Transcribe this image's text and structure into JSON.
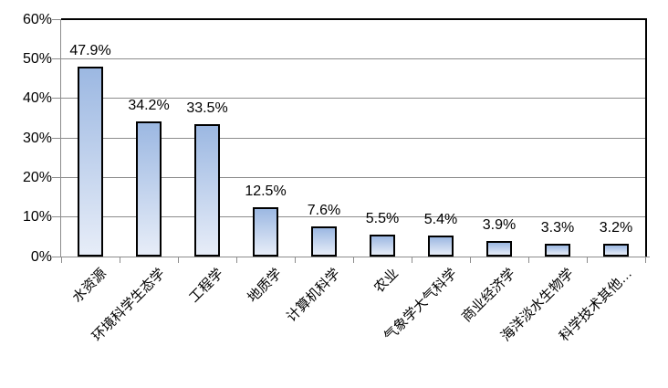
{
  "chart_data": {
    "type": "bar",
    "title": "",
    "xlabel": "",
    "ylabel": "",
    "categories": [
      "水资源",
      "环境科学生态学",
      "工程学",
      "地质学",
      "计算机科学",
      "农业",
      "气象学大气科学",
      "商业经济学",
      "海洋淡水生物学",
      "科学技术其他…"
    ],
    "values": [
      47.9,
      34.2,
      33.5,
      12.5,
      7.6,
      5.5,
      5.4,
      3.9,
      3.3,
      3.2
    ],
    "value_labels": [
      "47.9%",
      "34.2%",
      "33.5%",
      "12.5%",
      "7.6%",
      "5.5%",
      "5.4%",
      "3.9%",
      "3.3%",
      "3.2%"
    ],
    "y_axis_ticks": [
      {
        "label": "60%",
        "value": 60
      },
      {
        "label": "50%",
        "value": 50
      },
      {
        "label": "40%",
        "value": 40
      },
      {
        "label": "30%",
        "value": 30
      },
      {
        "label": "20%",
        "value": 20
      },
      {
        "label": "10%",
        "value": 10
      },
      {
        "label": "0%",
        "value": 0
      }
    ],
    "ylim": [
      0,
      60
    ],
    "grid": true,
    "legend": "none",
    "colors": {
      "bar_gradient_top": "#9cb8e2",
      "bar_gradient_bottom": "#e7edf8",
      "bar_border": "#000000",
      "gridline": "#8c8c8c",
      "axis_line": "#8c8c8c",
      "plot_border": "#000000",
      "text": "#000000",
      "background": "#ffffff"
    }
  }
}
